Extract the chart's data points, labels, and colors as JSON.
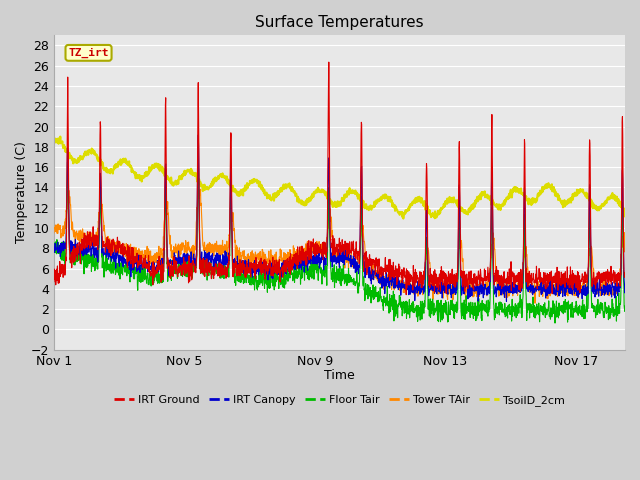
{
  "title": "Surface Temperatures",
  "xlabel": "Time",
  "ylabel": "Temperature (C)",
  "ylim": [
    -2,
    29
  ],
  "yticks": [
    -2,
    0,
    2,
    4,
    6,
    8,
    10,
    12,
    14,
    16,
    18,
    20,
    22,
    24,
    26,
    28
  ],
  "xlim": [
    0,
    17.5
  ],
  "xtick_positions": [
    0,
    4,
    8,
    12,
    16
  ],
  "xtick_labels": [
    "Nov 1",
    "Nov 5",
    "Nov 9",
    "Nov 13",
    "Nov 17"
  ],
  "fig_bg_color": "#d0d0d0",
  "plot_bg_color": "#e8e8e8",
  "grid_color": "#ffffff",
  "annotation_text": "TZ_irt",
  "annotation_color": "#cc0000",
  "annotation_bg": "#ffffcc",
  "annotation_border": "#aaaa00",
  "series": {
    "IRT Ground": {
      "color": "#dd0000",
      "lw": 0.8
    },
    "IRT Canopy": {
      "color": "#0000cc",
      "lw": 0.8
    },
    "Floor Tair": {
      "color": "#00bb00",
      "lw": 0.8
    },
    "Tower TAir": {
      "color": "#ff8800",
      "lw": 0.8
    },
    "TsoilD_2cm": {
      "color": "#dddd00",
      "lw": 1.5
    }
  }
}
